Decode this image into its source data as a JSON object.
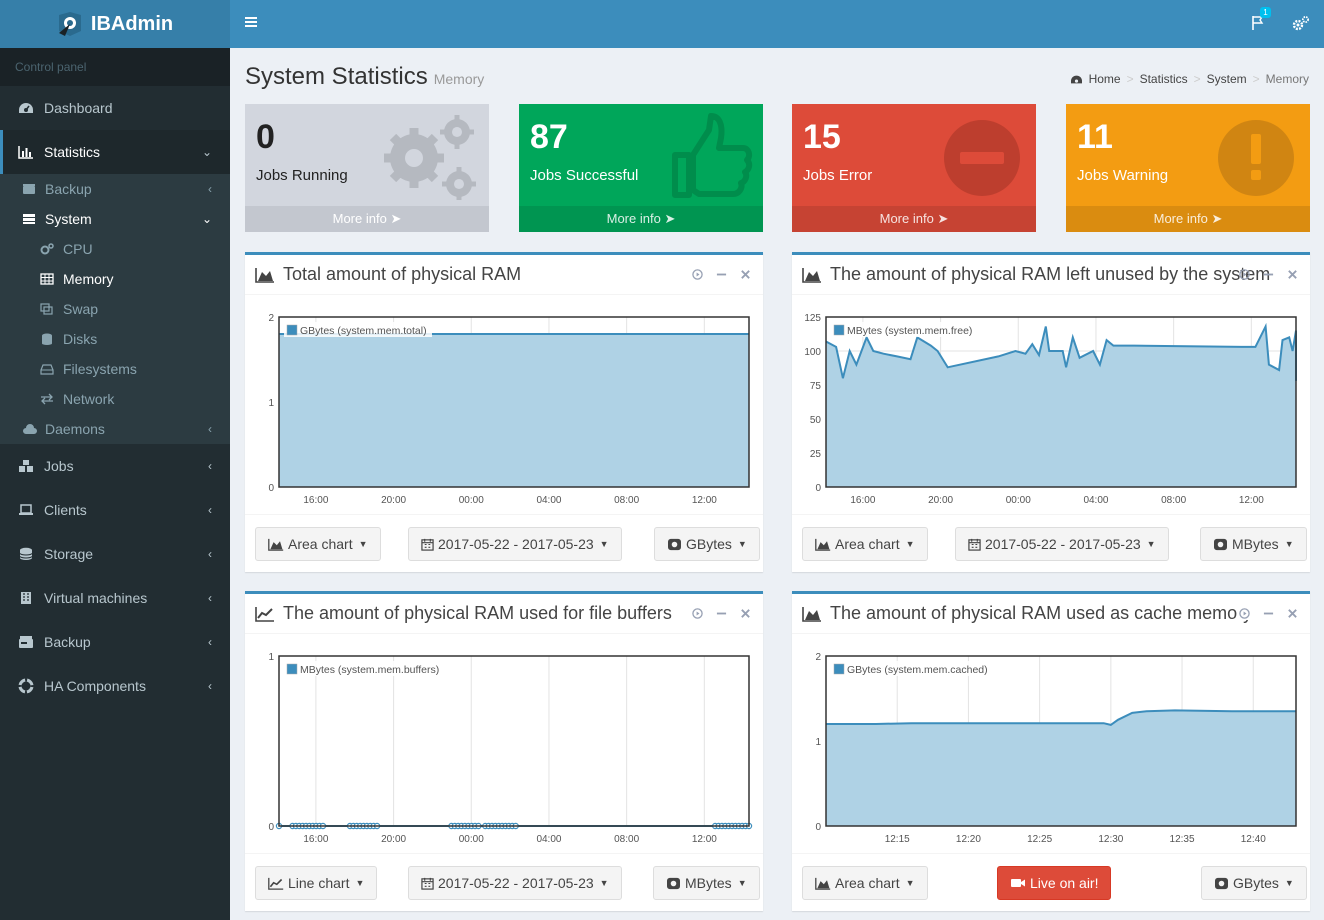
{
  "app": {
    "name": "IBAdmin",
    "control_panel": "Control panel"
  },
  "colors": {
    "sidebar": "#222d32",
    "header": "#3c8dbc",
    "aqua_fill": "#afd2e5",
    "line": "#3c8dbc",
    "green": "#00a65a",
    "red": "#dd4b39",
    "yellow": "#f39c12",
    "gray": "#d2d6de"
  },
  "sidebar": {
    "items": [
      {
        "label": "Dashboard",
        "icon": "dashboard-icon"
      },
      {
        "label": "Statistics",
        "icon": "bar-chart-icon"
      },
      {
        "label": "Jobs",
        "icon": "cubes-icon"
      },
      {
        "label": "Clients",
        "icon": "laptop-icon"
      },
      {
        "label": "Storage",
        "icon": "database-icon"
      },
      {
        "label": "Virtual machines",
        "icon": "building-icon"
      },
      {
        "label": "Backup",
        "icon": "hdd-icon"
      },
      {
        "label": "HA Components",
        "icon": "life-ring-icon"
      }
    ],
    "statistics_sub": {
      "backup": "Backup",
      "system": "System",
      "system_items": [
        "CPU",
        "Memory",
        "Swap",
        "Disks",
        "Filesystems",
        "Network"
      ],
      "daemons": "Daemons"
    }
  },
  "header": {
    "notification_count": "1"
  },
  "page": {
    "title": "System Statistics",
    "subtitle": "Memory"
  },
  "breadcrumb": [
    "Home",
    "Statistics",
    "System",
    "Memory"
  ],
  "boxes": [
    {
      "value": "0",
      "label": "Jobs Running",
      "more": "More info",
      "color": "#d2d6de"
    },
    {
      "value": "87",
      "label": "Jobs Successful",
      "more": "More info",
      "color": "#00a65a"
    },
    {
      "value": "15",
      "label": "Jobs Error",
      "more": "More info",
      "color": "#dd4b39"
    },
    {
      "value": "11",
      "label": "Jobs Warning",
      "more": "More info",
      "color": "#f39c12"
    }
  ],
  "panels": [
    {
      "title": "Total amount of physical RAM",
      "chart_btn": "Area chart",
      "date_btn": "2017-05-22 - 2017-05-23",
      "unit_btn": "GBytes"
    },
    {
      "title": "The amount of physical RAM left unused by the system",
      "chart_btn": "Area chart",
      "date_btn": "2017-05-22 - 2017-05-23",
      "unit_btn": "MBytes"
    },
    {
      "title": "The amount of physical RAM used for file buffers",
      "chart_btn": "Line chart",
      "date_btn": "2017-05-22 - 2017-05-23",
      "unit_btn": "MBytes"
    },
    {
      "title": "The amount of physical RAM used as cache memory",
      "chart_btn": "Area chart",
      "live_btn": "Live on air!",
      "unit_btn": "GBytes"
    }
  ],
  "chart_data": [
    {
      "type": "area",
      "legend": "GBytes (system.mem.total)",
      "ylim": [
        0,
        2
      ],
      "yticks": [
        0,
        1,
        2
      ],
      "xticks": [
        "16:00",
        "20:00",
        "00:00",
        "04:00",
        "08:00",
        "12:00"
      ],
      "x_hours": [
        -0.1,
        13.7
      ],
      "tick_hours": [
        0,
        4,
        8,
        12,
        16,
        20
      ],
      "series": [
        {
          "points": [
            [
              -0.1,
              1.8
            ],
            [
              13.7,
              1.8
            ]
          ]
        }
      ],
      "markers": false,
      "fill": true
    },
    {
      "type": "area",
      "legend": "MBytes (system.mem.free)",
      "ylim": [
        0,
        125
      ],
      "yticks": [
        0,
        25,
        50,
        75,
        100,
        125
      ],
      "xticks": [
        "16:00",
        "20:00",
        "00:00",
        "04:00",
        "08:00",
        "12:00"
      ],
      "x_hours": [
        -0.1,
        13.8
      ],
      "tick_hours": [
        0,
        4,
        8,
        12,
        16,
        20
      ],
      "series": [
        {
          "points": [
            [
              -0.1,
              107
            ],
            [
              0.2,
              103
            ],
            [
              0.4,
              80
            ],
            [
              0.6,
              100
            ],
            [
              0.8,
              90
            ],
            [
              1.1,
              110
            ],
            [
              1.3,
              100
            ],
            [
              1.6,
              98
            ],
            [
              2.0,
              96
            ],
            [
              2.4,
              94
            ],
            [
              2.6,
              110
            ],
            [
              3.0,
              104
            ],
            [
              3.2,
              100
            ],
            [
              3.5,
              88
            ],
            [
              5.0,
              96
            ],
            [
              5.5,
              100
            ],
            [
              5.8,
              98
            ],
            [
              6.0,
              105
            ],
            [
              6.2,
              97
            ],
            [
              6.4,
              118
            ],
            [
              6.5,
              100
            ],
            [
              6.9,
              100
            ],
            [
              7.0,
              88
            ],
            [
              7.2,
              110
            ],
            [
              7.4,
              95
            ],
            [
              7.8,
              100
            ],
            [
              8.0,
              90
            ],
            [
              8.2,
              108
            ],
            [
              8.4,
              104
            ],
            [
              9.0,
              104
            ],
            [
              12.2,
              103
            ],
            [
              12.6,
              103
            ],
            [
              12.9,
              118
            ],
            [
              13.0,
              90
            ],
            [
              13.3,
              86
            ],
            [
              13.4,
              108
            ],
            [
              13.6,
              110
            ],
            [
              13.7,
              100
            ],
            [
              13.8,
              115
            ],
            [
              13.85,
              78
            ]
          ]
        }
      ],
      "markers": false,
      "fill": true
    },
    {
      "type": "line",
      "legend": "MBytes (system.mem.buffers)",
      "ylim": [
        0,
        1
      ],
      "yticks": [
        0,
        1
      ],
      "xticks": [
        "16:00",
        "20:00",
        "00:00",
        "04:00",
        "08:00",
        "12:00"
      ],
      "x_hours": [
        -0.1,
        13.8
      ],
      "tick_hours": [
        0,
        4,
        8,
        12,
        16,
        20
      ],
      "series": [
        {
          "points": [
            [
              -0.1,
              0
            ],
            [
              13.8,
              0
            ]
          ]
        }
      ],
      "marker_hours": [
        -0.1,
        0.3,
        0.4,
        0.5,
        0.6,
        0.7,
        0.8,
        0.9,
        1.0,
        1.1,
        1.2,
        2.0,
        2.1,
        2.2,
        2.3,
        2.4,
        2.5,
        2.6,
        2.7,
        2.8,
        5.0,
        5.1,
        5.2,
        5.3,
        5.4,
        5.5,
        5.6,
        5.7,
        5.8,
        6.0,
        6.1,
        6.2,
        6.3,
        6.4,
        6.5,
        6.6,
        6.7,
        6.8,
        6.9,
        12.8,
        12.9,
        13.0,
        13.1,
        13.2,
        13.3,
        13.4,
        13.5,
        13.6,
        13.7,
        13.8
      ],
      "markers": true,
      "fill": false
    },
    {
      "type": "area",
      "legend": "GBytes (system.mem.cached)",
      "ylim": [
        0,
        2
      ],
      "yticks": [
        0,
        1,
        2
      ],
      "xticks": [
        "12:15",
        "12:20",
        "12:25",
        "12:30",
        "12:35",
        "12:40"
      ],
      "x_hours": [
        10.15,
        13.45
      ],
      "tick_hours": [
        10.65,
        11.15,
        11.65,
        12.15,
        12.65,
        13.15
      ],
      "series": [
        {
          "points": [
            [
              10.15,
              1.2
            ],
            [
              10.5,
              1.2
            ],
            [
              10.75,
              1.21
            ],
            [
              11.0,
              1.21
            ],
            [
              11.5,
              1.21
            ],
            [
              11.8,
              1.21
            ],
            [
              12.0,
              1.21
            ],
            [
              12.1,
              1.21
            ],
            [
              12.15,
              1.19
            ],
            [
              12.2,
              1.25
            ],
            [
              12.3,
              1.33
            ],
            [
              12.4,
              1.35
            ],
            [
              12.6,
              1.36
            ],
            [
              13.0,
              1.35
            ],
            [
              13.45,
              1.35
            ]
          ]
        }
      ],
      "markers": false,
      "fill": true
    }
  ]
}
